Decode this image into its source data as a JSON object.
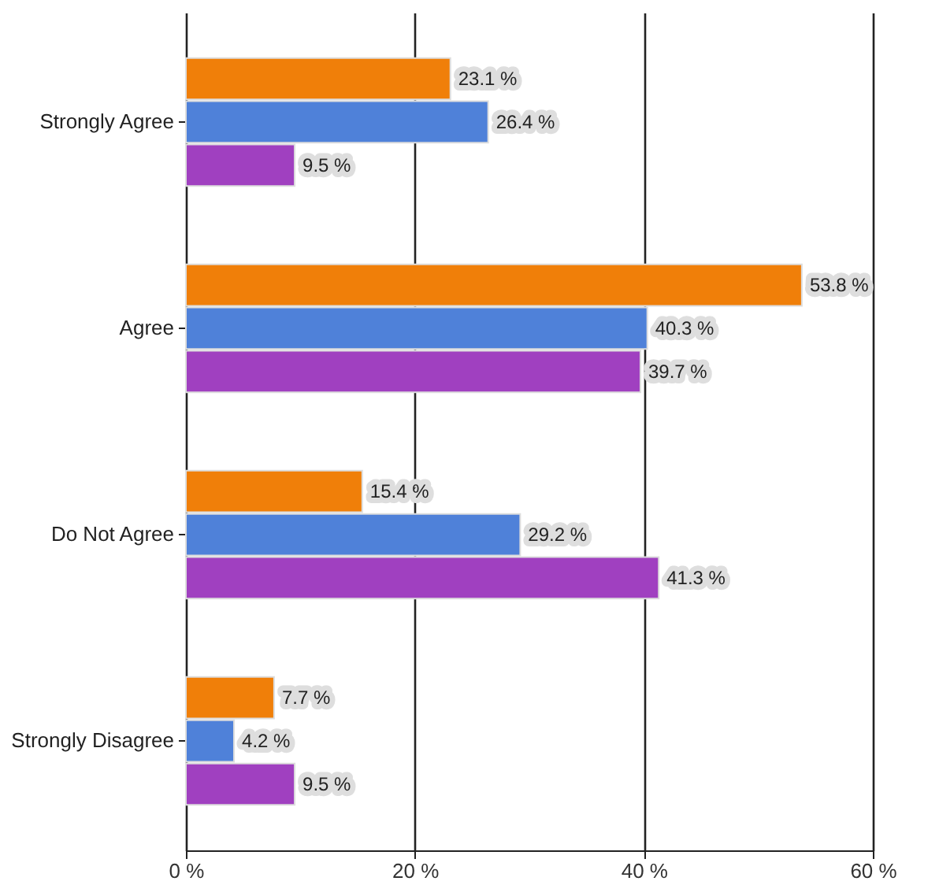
{
  "chart_data": {
    "type": "bar",
    "orientation": "horizontal",
    "categories": [
      "Strongly  Agree",
      "Agree",
      "Do Not Agree",
      "Strongly Disagree"
    ],
    "series": [
      {
        "color": "#f07f09",
        "values": [
          23.1,
          53.8,
          15.4,
          7.7
        ],
        "value_labels": [
          "23.1 %",
          "53.8 %",
          "15.4 %",
          "7.7 %"
        ]
      },
      {
        "color": "#4f81d9",
        "values": [
          26.4,
          40.3,
          29.2,
          4.2
        ],
        "value_labels": [
          "26.4 %",
          "40.3 %",
          "29.2 %",
          "4.2 %"
        ]
      },
      {
        "color": "#a040c0",
        "values": [
          9.5,
          39.7,
          41.3,
          9.5
        ],
        "value_labels": [
          "9.5 %",
          "39.7 %",
          "41.3 %",
          "9.5 %"
        ]
      }
    ],
    "xlim": [
      0,
      60
    ],
    "xticks": [
      {
        "value": 0,
        "label": "0 %"
      },
      {
        "value": 20,
        "label": "20 %"
      },
      {
        "value": 40,
        "label": "40 %"
      },
      {
        "value": 60,
        "label": "60 %"
      }
    ],
    "grid": "x",
    "legend": false
  }
}
